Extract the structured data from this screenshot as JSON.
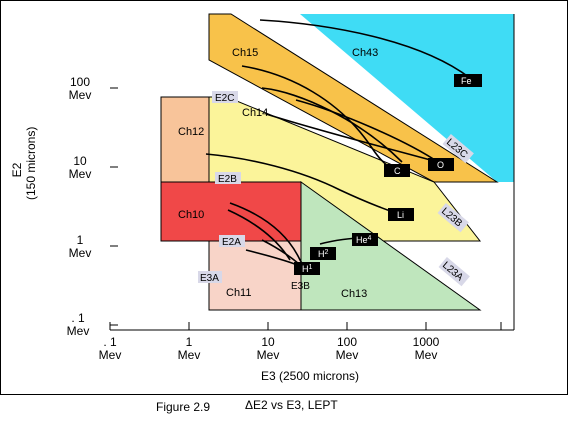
{
  "diagram": {
    "x_axis_title": "E3 (2500 microns)",
    "y_axis_title": [
      "E2",
      "(150 microns)"
    ],
    "x_ticks": [
      {
        "value": ". 1",
        "unit": "Mev"
      },
      {
        "value": "1",
        "unit": "Mev"
      },
      {
        "value": "10",
        "unit": "Mev"
      },
      {
        "value": "100",
        "unit": "Mev"
      },
      {
        "value": "1000",
        "unit": "Mev"
      }
    ],
    "y_ticks": [
      {
        "value": "100",
        "unit": "Mev"
      },
      {
        "value": "10",
        "unit": "Mev"
      },
      {
        "value": "1",
        "unit": "Mev"
      },
      {
        "value": ". 1",
        "unit": "Mev"
      }
    ],
    "regions": [
      {
        "name": "Ch43",
        "color": "#3fdcf5"
      },
      {
        "name": "Ch15",
        "color": "#f8c24a"
      },
      {
        "name": "Ch14",
        "color": "#fbf49a"
      },
      {
        "name": "Ch12",
        "color": "#f8c49a"
      },
      {
        "name": "Ch10",
        "color": "#f04848"
      },
      {
        "name": "Ch11",
        "color": "#f8d4c8"
      },
      {
        "name": "Ch13",
        "color": "#bfe6bd"
      }
    ],
    "boundary_labels": [
      "E2C",
      "E2B",
      "E2A",
      "E3A",
      "E3B",
      "L23C",
      "L23B",
      "L23A"
    ],
    "particles": [
      "Fe",
      "O",
      "C",
      "Li",
      "He4",
      "H2",
      "H1"
    ],
    "particle_markup": {
      "He4": {
        "base": "He",
        "sup": "4"
      },
      "H2": {
        "base": "H",
        "sup": "2"
      },
      "H1": {
        "base": "H",
        "sup": "1"
      }
    }
  },
  "caption": {
    "figure": "Figure 2.9",
    "title": "ΔE2 vs E3, LEPT"
  }
}
